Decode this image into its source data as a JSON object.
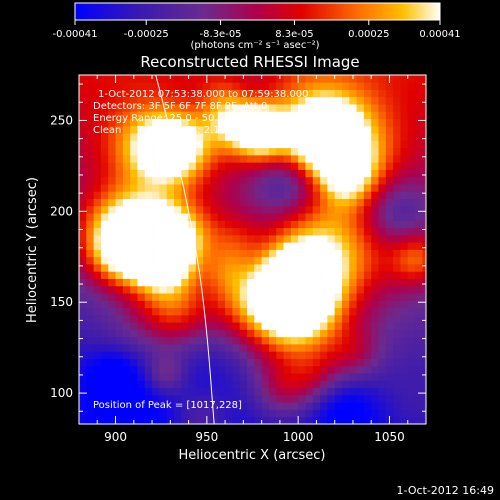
{
  "chart_data": {
    "type": "heatmap",
    "title": "Reconstructed RHESSI Image",
    "xlabel": "Heliocentric X (arcsec)",
    "ylabel": "Heliocentric Y (arcsec)",
    "xlim": [
      880,
      1070
    ],
    "ylim": [
      83,
      275
    ],
    "x_ticks": [
      900,
      950,
      1000,
      1050
    ],
    "y_ticks": [
      100,
      150,
      200,
      250
    ],
    "colorbar": {
      "min": -0.00041,
      "max": 0.00041,
      "colormap": "blue-purple-red-yellow-white",
      "tick_values": [
        -0.00041,
        -0.00025,
        -8.3e-05,
        8.3e-05,
        0.00025,
        0.00041
      ],
      "tick_labels": [
        "-0.00041",
        "-0.00025",
        "-8.3e-05",
        "8.3e-05",
        "0.00025",
        "0.00041"
      ],
      "unit_label": "(photons cm⁻² s⁻¹ asec⁻²)"
    },
    "annotations": [
      "1-Oct-2012 07:53:38.000 to 07:59:38.000",
      "Detectors: 3F 5F 6F 7F 8F 9F, Att 0",
      "Energy Range: 25.0 - 50.0 keV",
      "Clean     Total counts: 2.10E+04"
    ],
    "peak_text": "Position of Peak = [1017,228]",
    "peak_position": [
      1017,
      228
    ],
    "limb_curve": [
      [
        922,
        275
      ],
      [
        935,
        225
      ],
      [
        945,
        175
      ],
      [
        950,
        135
      ],
      [
        954,
        83
      ]
    ],
    "grid": false,
    "footer_date": "1-Oct-2012 16:49",
    "colors": {
      "background": "#000000",
      "foreground": "#ffffff",
      "low": "#0000ff",
      "mid_low": "#5a2a8a",
      "mid": "#c80000",
      "mid_high": "#ff8000",
      "high": "#ffff80"
    }
  }
}
